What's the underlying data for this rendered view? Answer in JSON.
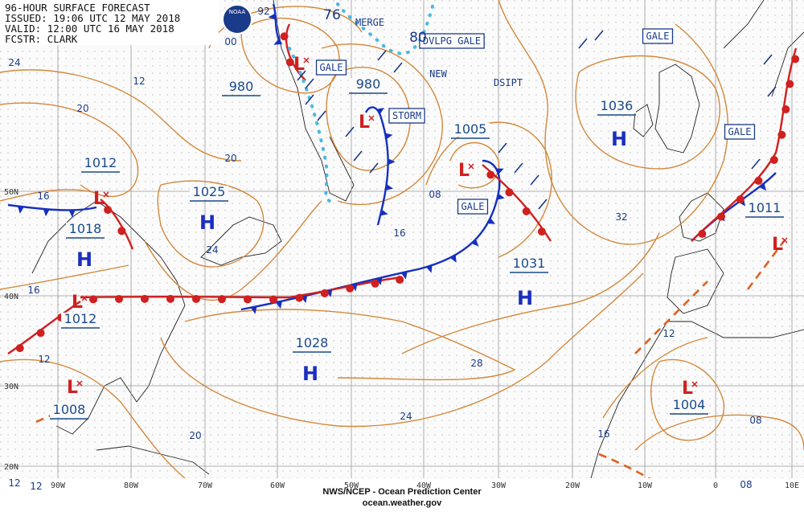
{
  "header": {
    "lines": [
      "96-HOUR SURFACE FORECAST",
      "ISSUED: 19:06 UTC 12 MAY 2018",
      "VALID: 12:00 UTC 16 MAY 2018",
      "FCSTR: CLARK"
    ],
    "logo": "NOAA"
  },
  "centers": [
    {
      "pressure": "980",
      "symbol": "L"
    },
    {
      "pressure": "980",
      "symbol": "L"
    },
    {
      "pressure": "1005",
      "symbol": "L"
    },
    {
      "pressure": "1036",
      "symbol": "H"
    },
    {
      "pressure": "1012",
      "symbol": "L"
    },
    {
      "pressure": "1025",
      "symbol": "H"
    },
    {
      "pressure": "1018",
      "symbol": "H"
    },
    {
      "pressure": "1031",
      "symbol": "H"
    },
    {
      "pressure": "1012",
      "symbol": "L"
    },
    {
      "pressure": "1028",
      "symbol": "H"
    },
    {
      "pressure": "1008",
      "symbol": "L"
    },
    {
      "pressure": "1004",
      "symbol": "L"
    },
    {
      "pressure": "1011",
      "symbol": "L"
    }
  ],
  "annotations": [
    "GALE",
    "GALE",
    "GALE",
    "GALE",
    "STORM",
    "MERGE",
    "DVLPG GALE",
    "NEW",
    "DSIPT"
  ],
  "isobar_labels": [
    "24",
    "12",
    "20",
    "20",
    "16",
    "24",
    "16",
    "12",
    "12",
    "12",
    "20",
    "24",
    "28",
    "32",
    "16",
    "08",
    "12",
    "16",
    "08",
    "08",
    "92",
    "00",
    "76",
    "80"
  ],
  "latitude_labels": [
    "50N",
    "40N",
    "30N",
    "20N"
  ],
  "longitude_labels": [
    "90W",
    "80W",
    "70W",
    "60W",
    "50W",
    "40W",
    "30W",
    "20W",
    "10W",
    "0",
    "10E"
  ],
  "footer": {
    "agency": "NWS/NCEP - Ocean Prediction Center",
    "site": "ocean.weather.gov"
  }
}
